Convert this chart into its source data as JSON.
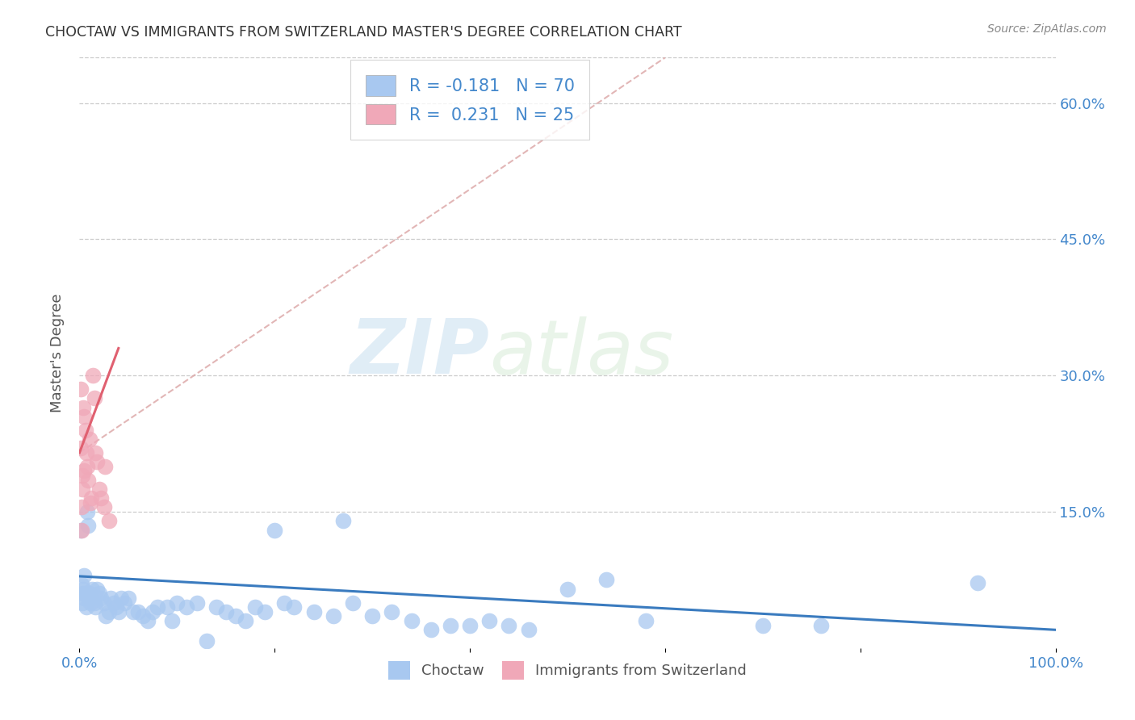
{
  "title": "CHOCTAW VS IMMIGRANTS FROM SWITZERLAND MASTER'S DEGREE CORRELATION CHART",
  "source": "Source: ZipAtlas.com",
  "ylabel": "Master's Degree",
  "xlim": [
    0,
    1.0
  ],
  "ylim": [
    0,
    0.65
  ],
  "r1": -0.181,
  "n1": 70,
  "r2": 0.231,
  "n2": 25,
  "color_blue": "#a8c8f0",
  "color_pink": "#f0a8b8",
  "line_color_blue": "#3a7bbf",
  "line_color_pink": "#e06070",
  "line_color_dashed": "#ddaaaa",
  "legend_label1": "Choctaw",
  "legend_label2": "Immigrants from Switzerland",
  "watermark_zip": "ZIP",
  "watermark_atlas": "atlas",
  "blue_line_x": [
    0.0,
    1.0
  ],
  "blue_line_y": [
    0.079,
    0.02
  ],
  "pink_line_x": [
    0.0,
    0.04
  ],
  "pink_line_y": [
    0.215,
    0.33
  ],
  "dashed_line_x": [
    0.0,
    0.6
  ],
  "dashed_line_y": [
    0.215,
    0.65
  ],
  "blue_points_x": [
    0.001,
    0.002,
    0.003,
    0.003,
    0.004,
    0.005,
    0.005,
    0.006,
    0.007,
    0.008,
    0.009,
    0.01,
    0.011,
    0.012,
    0.013,
    0.015,
    0.016,
    0.018,
    0.02,
    0.022,
    0.025,
    0.027,
    0.03,
    0.032,
    0.035,
    0.038,
    0.04,
    0.043,
    0.046,
    0.05,
    0.055,
    0.06,
    0.065,
    0.07,
    0.075,
    0.08,
    0.09,
    0.095,
    0.1,
    0.11,
    0.12,
    0.13,
    0.14,
    0.15,
    0.16,
    0.17,
    0.18,
    0.19,
    0.2,
    0.21,
    0.22,
    0.24,
    0.26,
    0.27,
    0.28,
    0.3,
    0.32,
    0.34,
    0.36,
    0.38,
    0.4,
    0.42,
    0.44,
    0.46,
    0.5,
    0.54,
    0.58,
    0.7,
    0.76,
    0.92
  ],
  "blue_points_y": [
    0.13,
    0.07,
    0.06,
    0.05,
    0.065,
    0.055,
    0.08,
    0.06,
    0.045,
    0.15,
    0.135,
    0.06,
    0.05,
    0.055,
    0.065,
    0.05,
    0.045,
    0.065,
    0.06,
    0.055,
    0.05,
    0.035,
    0.04,
    0.055,
    0.05,
    0.045,
    0.04,
    0.055,
    0.05,
    0.055,
    0.04,
    0.04,
    0.035,
    0.03,
    0.04,
    0.045,
    0.045,
    0.03,
    0.05,
    0.045,
    0.05,
    0.008,
    0.045,
    0.04,
    0.035,
    0.03,
    0.045,
    0.04,
    0.13,
    0.05,
    0.045,
    0.04,
    0.035,
    0.14,
    0.05,
    0.035,
    0.04,
    0.03,
    0.02,
    0.025,
    0.025,
    0.03,
    0.025,
    0.02,
    0.065,
    0.075,
    0.03,
    0.025,
    0.025,
    0.072
  ],
  "pink_points_x": [
    0.001,
    0.001,
    0.002,
    0.002,
    0.003,
    0.003,
    0.004,
    0.005,
    0.005,
    0.006,
    0.007,
    0.008,
    0.009,
    0.01,
    0.011,
    0.012,
    0.014,
    0.015,
    0.016,
    0.018,
    0.02,
    0.022,
    0.025,
    0.026,
    0.03
  ],
  "pink_points_y": [
    0.285,
    0.22,
    0.155,
    0.13,
    0.19,
    0.175,
    0.265,
    0.255,
    0.195,
    0.24,
    0.215,
    0.2,
    0.185,
    0.23,
    0.16,
    0.165,
    0.3,
    0.275,
    0.215,
    0.205,
    0.175,
    0.165,
    0.155,
    0.2,
    0.14
  ]
}
